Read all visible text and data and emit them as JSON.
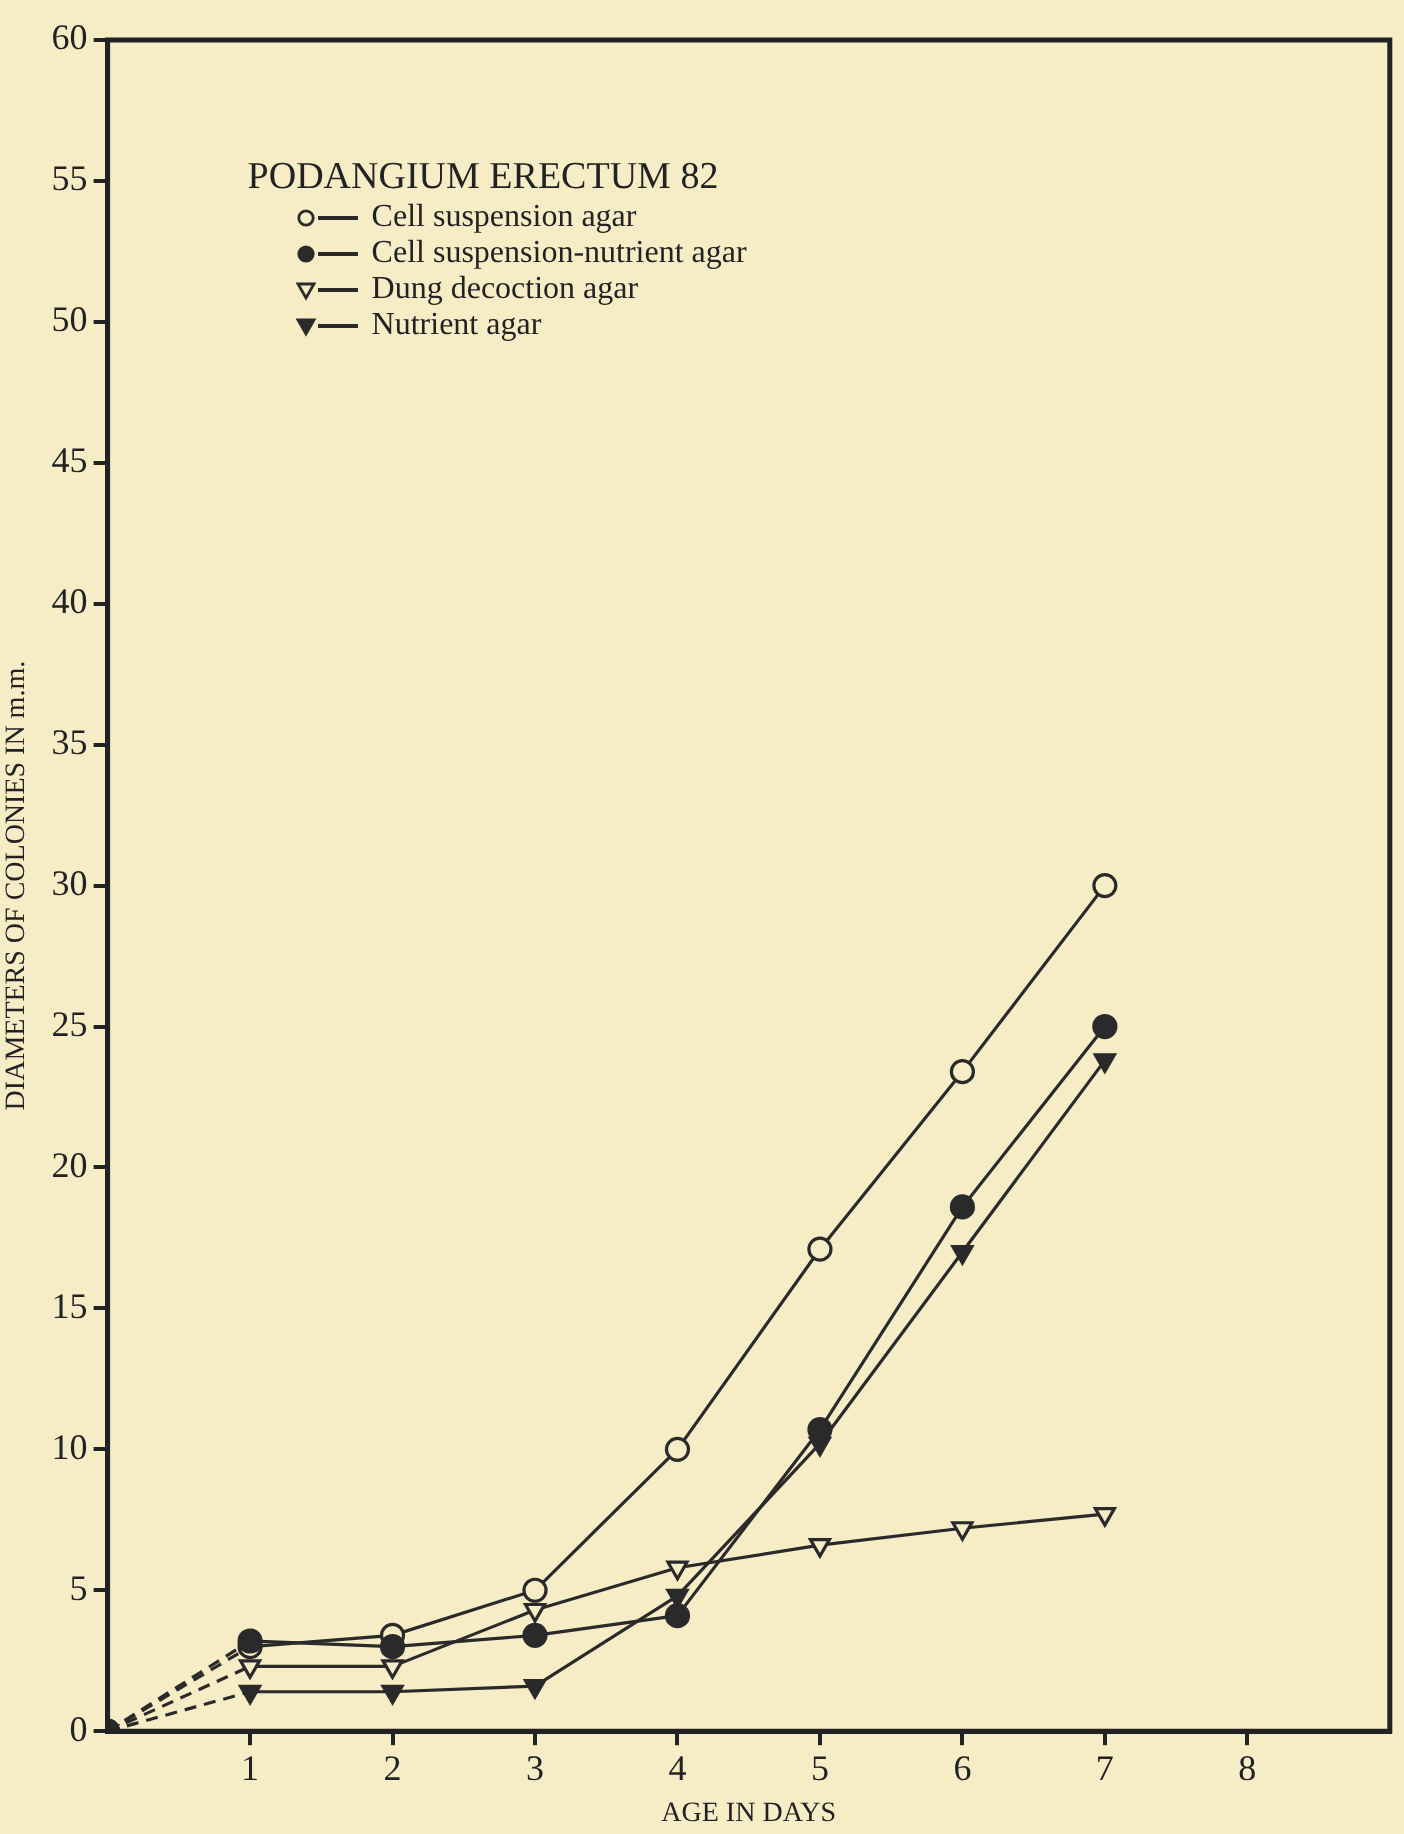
{
  "chart_data": {
    "type": "line",
    "xlabel": "AGE IN DAYS",
    "ylabel": "DIAMETERS OF COLONIES IN m.m.",
    "legend_title": "PODANGIUM ERECTUM 82",
    "legend": "top left",
    "grid": false,
    "x": [
      0,
      1,
      2,
      3,
      4,
      5,
      6,
      7
    ],
    "xlim": [
      0,
      9
    ],
    "xticks": [
      1,
      2,
      3,
      4,
      5,
      6,
      7,
      8
    ],
    "ylim": [
      0,
      60
    ],
    "yticks": [
      0,
      5,
      10,
      15,
      20,
      25,
      30,
      35,
      40,
      45,
      50,
      55,
      60
    ],
    "series": [
      {
        "name": "Cell suspension agar",
        "color": "#2a2a2a",
        "marker": "circle",
        "values": [
          0,
          3.0,
          3.4,
          5.0,
          10.0,
          17.1,
          23.4,
          30.0
        ]
      },
      {
        "name": "Cell suspension-nutrient agar",
        "color": "#2a2a2a",
        "marker": "circle",
        "values": [
          0,
          3.2,
          3.0,
          3.4,
          4.1,
          10.7,
          18.6,
          25.0
        ]
      },
      {
        "name": "Dung decoction agar",
        "color": "#2a2a2a",
        "marker": "triangle",
        "values": [
          0,
          2.3,
          2.3,
          4.3,
          5.8,
          6.6,
          7.2,
          7.7
        ]
      },
      {
        "name": "Nutrient agar",
        "color": "#2a2a2a",
        "marker": "triangle",
        "values": [
          0,
          1.4,
          1.4,
          1.6,
          4.8,
          10.2,
          17.0,
          23.8
        ]
      }
    ]
  }
}
